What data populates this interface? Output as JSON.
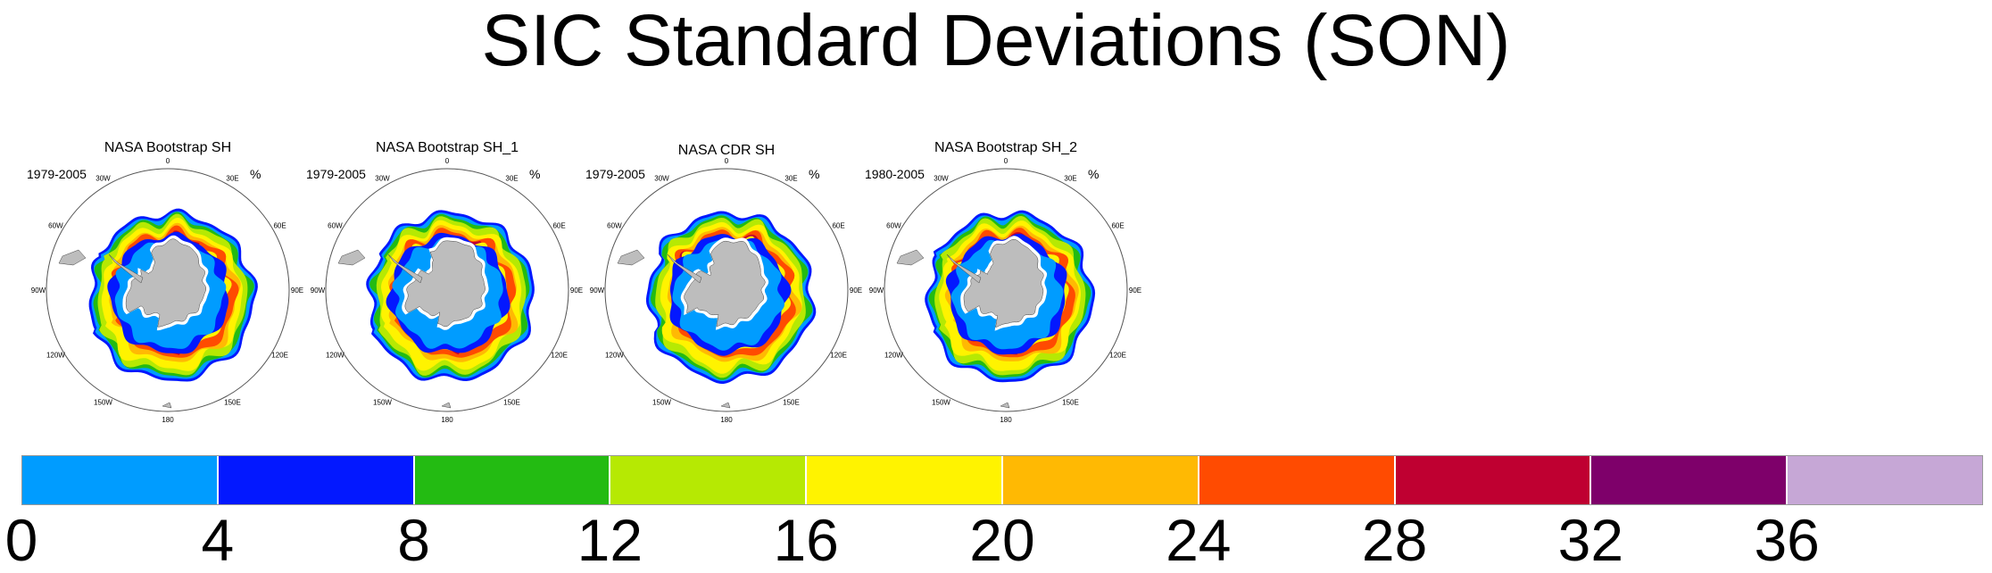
{
  "title": "SIC Standard Deviations (SON)",
  "panels": [
    {
      "title": "NASA Bootstrap SH",
      "period": "1979-2005",
      "unit": "%"
    },
    {
      "title": "NASA Bootstrap SH_1",
      "period": "1979-2005",
      "unit": "%"
    },
    {
      "title": "NASA CDR SH",
      "period": "1979-2005",
      "unit": "%"
    },
    {
      "title": "NASA Bootstrap SH_2",
      "period": "1980-2005",
      "unit": "%"
    }
  ],
  "longitude_labels": [
    "0",
    "30E",
    "60E",
    "90E",
    "120E",
    "150E",
    "180",
    "150W",
    "120W",
    "90W",
    "60W",
    "30W"
  ],
  "chart_data": {
    "type": "heatmap",
    "title": "SIC Standard Deviations (SON)",
    "projection": "south-polar-stereographic",
    "colorbar": {
      "levels": [
        0,
        4,
        8,
        12,
        16,
        20,
        24,
        28,
        32,
        36
      ],
      "tick_labels": [
        "0",
        "4",
        "8",
        "12",
        "16",
        "20",
        "24",
        "28",
        "32",
        "36"
      ],
      "colors": [
        "#009cff",
        "#0318ff",
        "#23bb12",
        "#b6e903",
        "#fff300",
        "#ffb903",
        "#ff4b01",
        "#bf0031",
        "#7e006a",
        "#c6a7d6"
      ],
      "orientation": "horizontal",
      "placement": "bottom"
    },
    "land_color": "#bdbdbd",
    "series": [
      {
        "name": "NASA Bootstrap SH",
        "period": "1979-2005"
      },
      {
        "name": "NASA Bootstrap SH_1",
        "period": "1979-2005"
      },
      {
        "name": "NASA CDR SH",
        "period": "1979-2005"
      },
      {
        "name": "NASA Bootstrap SH_2",
        "period": "1980-2005"
      }
    ]
  }
}
